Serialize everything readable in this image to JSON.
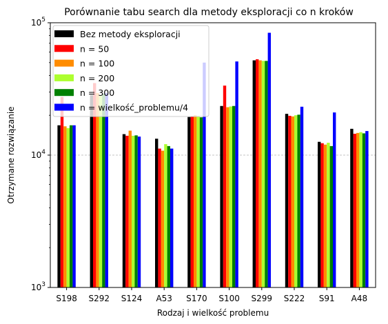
{
  "chart_data": {
    "type": "bar",
    "title": "Porównanie tabu search dla metody eksploracji co n kroków",
    "xlabel": "Rodzaj i wielkość problemu",
    "ylabel": "Otrzymane rozwiązanie",
    "yscale": "log",
    "ylim": [
      1000,
      100000
    ],
    "yticks": [
      {
        "value": 1000,
        "base": "10",
        "exp": "3"
      },
      {
        "value": 10000,
        "base": "10",
        "exp": "4"
      },
      {
        "value": 100000,
        "base": "10",
        "exp": "5"
      }
    ],
    "grid": "y-major dashed",
    "legend_position": "top-left",
    "categories": [
      "S198",
      "S292",
      "S124",
      "A53",
      "S170",
      "S100",
      "S299",
      "S222",
      "S91",
      "A48"
    ],
    "series": [
      {
        "name": "Bez metody eksploracji",
        "color": "#000000",
        "values": [
          16800,
          28500,
          14400,
          13300,
          19400,
          23500,
          52000,
          20500,
          12600,
          15800
        ]
      },
      {
        "name": "n = 50",
        "color": "#ff0000",
        "values": [
          27500,
          35000,
          14000,
          11200,
          19500,
          33500,
          53000,
          19800,
          12300,
          14500
        ]
      },
      {
        "name": "n = 100",
        "color": "#ff8c00",
        "values": [
          16500,
          29500,
          15300,
          10800,
          20000,
          23000,
          52000,
          19600,
          12000,
          14700
        ]
      },
      {
        "name": "n = 200",
        "color": "#adff2f",
        "values": [
          16000,
          28000,
          14000,
          12100,
          19500,
          23300,
          51500,
          20000,
          12400,
          14900
        ]
      },
      {
        "name": "n = 300",
        "color": "#008000",
        "values": [
          16800,
          29000,
          14100,
          11700,
          19300,
          23500,
          51500,
          20200,
          11700,
          14600
        ]
      },
      {
        "name": "n = wielkość_problemu/4",
        "color": "#0000ff",
        "values": [
          16800,
          29500,
          13800,
          11200,
          50000,
          51000,
          84000,
          23200,
          21000,
          15200
        ]
      }
    ]
  }
}
